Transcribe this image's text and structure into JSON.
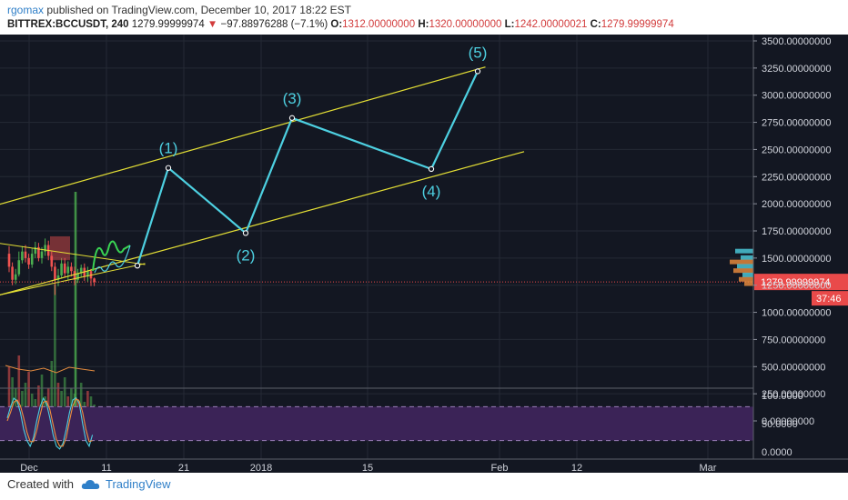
{
  "header": {
    "author": "rgomax",
    "published": "published on TradingView.com, December 10, 2017 18:22 EST",
    "symbol": "BITTREX:BCCUSDT, 240",
    "last": "1279.99999974",
    "change": "−97.88976288 (−7.1%)",
    "o_label": "O:",
    "o_value": "1312.00000000",
    "h_label": "H:",
    "h_value": "1320.00000000",
    "l_label": "L:",
    "l_value": "1242.00000021",
    "c_label": "C:",
    "c_value": "1279.99999974"
  },
  "footer": {
    "created_with": "Created with",
    "brand": "TradingView"
  },
  "colors": {
    "background": "#131722",
    "wave": "#4dd0e1",
    "channel": "#e5e035",
    "up": "#4caf50",
    "down": "#ef5350",
    "price_tag": "#e94a4a",
    "stoch_band": "#3b2357"
  },
  "chart_data": {
    "type": "line",
    "title": "BITTREX:BCCUSDT, 240",
    "price_axis": {
      "ticks": [
        "3500.00000000",
        "3250.00000000",
        "3000.00000000",
        "2750.00000000",
        "2500.00000000",
        "2250.00000000",
        "2000.00000000",
        "1750.00000000",
        "1500.00000000",
        "1250.00000000",
        "1000.00000000",
        "750.00000000",
        "500.00000000",
        "250.00000000",
        "0.00000000"
      ],
      "tick_values": [
        3500,
        3250,
        3000,
        2750,
        2500,
        2250,
        2000,
        1750,
        1500,
        1250,
        1000,
        750,
        500,
        250,
        0
      ],
      "ylim": [
        0,
        3500
      ]
    },
    "oscillator_axis": {
      "ticks": [
        "100.0000",
        "50.0000",
        "0.0000"
      ],
      "tick_values": [
        100,
        50,
        0
      ],
      "ylim": [
        0,
        100
      ]
    },
    "x_axis": {
      "ticks": [
        "Dec",
        "11",
        "21",
        "2018",
        "15",
        "Feb",
        "12",
        "Mar"
      ]
    },
    "last_price_label": "1279.99999974",
    "countdown": "37:46",
    "wave_projection": {
      "labels": [
        "(1)",
        "(2)",
        "(3)",
        "(4)",
        "(5)"
      ],
      "points": [
        {
          "date": "2017-12-15",
          "price": 1430
        },
        {
          "date": "2017-12-19",
          "price": 2330
        },
        {
          "date": "2017-12-29",
          "price": 1730
        },
        {
          "date": "2018-01-04",
          "price": 2790
        },
        {
          "date": "2018-01-22",
          "price": 2320
        },
        {
          "date": "2018-01-28",
          "price": 3220
        }
      ]
    },
    "channel": {
      "upper": [
        {
          "date": "2017-11-20",
          "price": 1850
        },
        {
          "date": "2018-01-29",
          "price": 3260
        }
      ],
      "lower": [
        {
          "date": "2017-11-20",
          "price": 1020
        },
        {
          "date": "2018-02-03",
          "price": 2480
        }
      ]
    },
    "triangle": {
      "upper": [
        {
          "date": "2017-11-20",
          "price": 1710
        },
        {
          "date": "2017-12-16",
          "price": 1440
        }
      ],
      "lower": [
        {
          "date": "2017-11-20",
          "price": 1050
        },
        {
          "date": "2017-12-16",
          "price": 1450
        }
      ]
    },
    "grid": true
  }
}
